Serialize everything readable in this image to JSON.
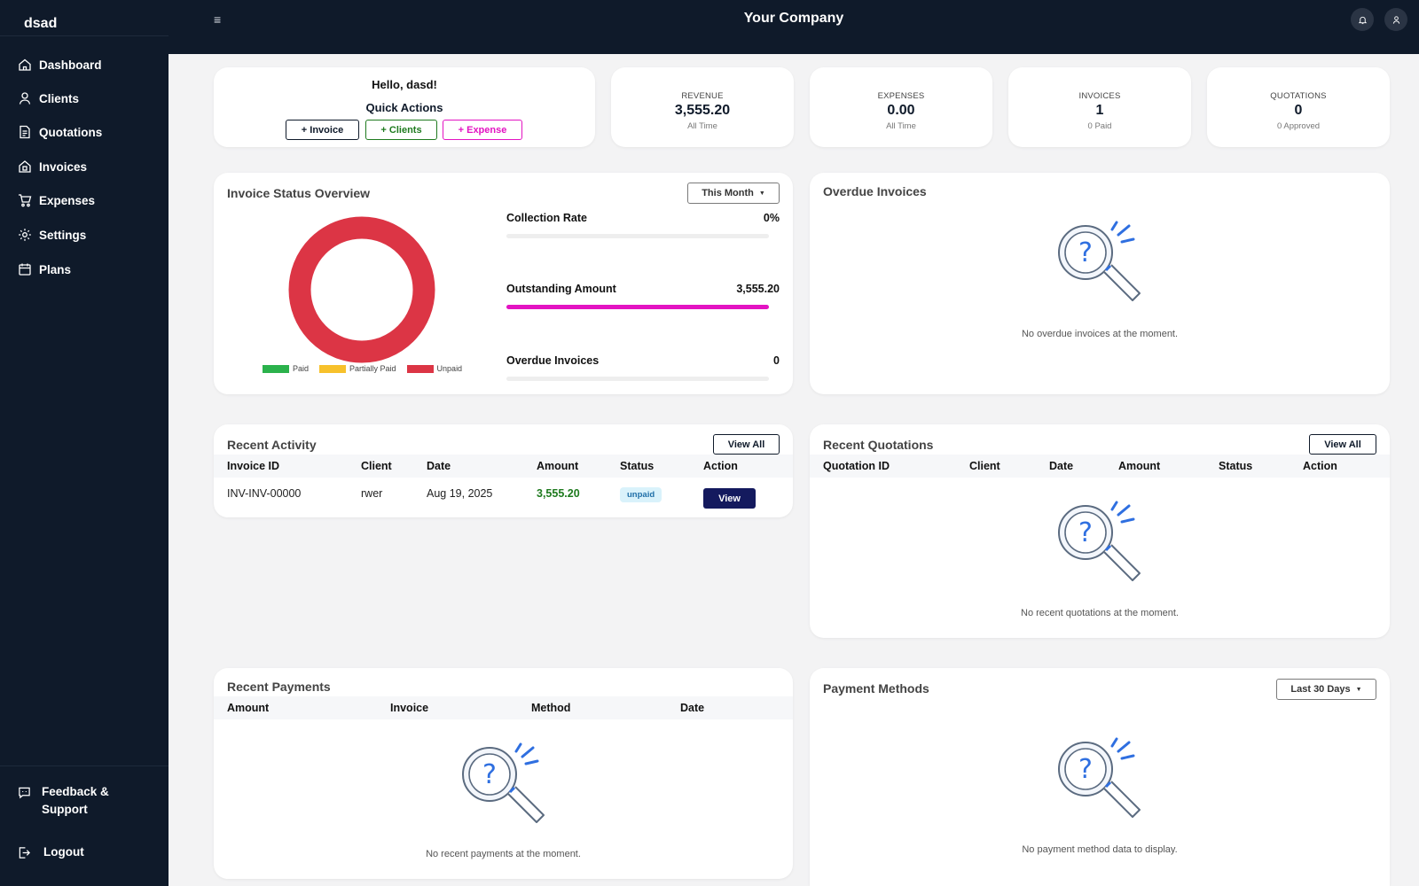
{
  "sidebar": {
    "brand": "dsad",
    "items": [
      {
        "label": "Dashboard",
        "icon": "home-icon"
      },
      {
        "label": "Clients",
        "icon": "user-icon"
      },
      {
        "label": "Quotations",
        "icon": "document-icon"
      },
      {
        "label": "Invoices",
        "icon": "invoice-icon"
      },
      {
        "label": "Expenses",
        "icon": "cart-icon"
      },
      {
        "label": "Settings",
        "icon": "gear-icon"
      },
      {
        "label": "Plans",
        "icon": "calendar-icon"
      }
    ],
    "feedback_line1": "Feedback &",
    "feedback_line2": "Support",
    "logout": "Logout"
  },
  "topbar": {
    "menu_icon": "≡",
    "company": "Your Company"
  },
  "welcome": {
    "hello": "Hello, dasd!",
    "quick_actions": "Quick Actions",
    "invoice_btn": "+ Invoice",
    "clients_btn": "+ Clients",
    "expense_btn": "+ Expense"
  },
  "stats": [
    {
      "label": "REVENUE",
      "value": "3,555.20",
      "sub": "All Time"
    },
    {
      "label": "EXPENSES",
      "value": "0.00",
      "sub": "All Time"
    },
    {
      "label": "INVOICES",
      "value": "1",
      "sub": "0 Paid"
    },
    {
      "label": "QUOTATIONS",
      "value": "0",
      "sub": "0 Approved"
    }
  ],
  "invoice_status": {
    "title": "Invoice Status Overview",
    "period": "This Month",
    "collection_rate_label": "Collection Rate",
    "collection_rate_value": "0%",
    "collection_rate_fraction": 0,
    "outstanding_label": "Outstanding Amount",
    "outstanding_value": "3,555.20",
    "outstanding_fraction": 1,
    "overdue_label": "Overdue Invoices",
    "overdue_value": "0",
    "overdue_fraction": 0,
    "legend": [
      {
        "label": "Paid",
        "color": "#2bb24c"
      },
      {
        "label": "Partially Paid",
        "color": "#f7c12b"
      },
      {
        "label": "Unpaid",
        "color": "#dc3545"
      }
    ]
  },
  "chart_data": {
    "type": "pie",
    "categories": [
      "Paid",
      "Partially Paid",
      "Unpaid"
    ],
    "values": [
      0,
      0,
      1
    ],
    "colors": [
      "#2bb24c",
      "#f7c12b",
      "#dc3545"
    ],
    "legend_position": "bottom"
  },
  "overdue": {
    "title": "Overdue Invoices",
    "empty": "No overdue invoices at the moment."
  },
  "recent_activity": {
    "title": "Recent Activity",
    "view_all": "View All",
    "columns": [
      "Invoice ID",
      "Client",
      "Date",
      "Amount",
      "Status",
      "Action"
    ],
    "rows": [
      {
        "id": "INV-INV-00000",
        "client": "rwer",
        "date": "Aug 19, 2025",
        "amount": "3,555.20",
        "status": "unpaid",
        "action": "View"
      }
    ]
  },
  "recent_quotations": {
    "title": "Recent Quotations",
    "view_all": "View All",
    "columns": [
      "Quotation ID",
      "Client",
      "Date",
      "Amount",
      "Status",
      "Action"
    ],
    "empty": "No recent quotations at the moment."
  },
  "recent_payments": {
    "title": "Recent Payments",
    "columns": [
      "Amount",
      "Invoice",
      "Method",
      "Date"
    ],
    "empty": "No recent payments at the moment."
  },
  "payment_methods": {
    "title": "Payment Methods",
    "period": "Last 30 Days",
    "empty": "No payment method data to display."
  },
  "colors": {
    "navy": "#0f1a2a",
    "accent_pink": "#e313c2",
    "success_green": "#1e7a1e",
    "unpaid_red": "#dc3545",
    "illustration_blue": "#2f6fe0"
  }
}
